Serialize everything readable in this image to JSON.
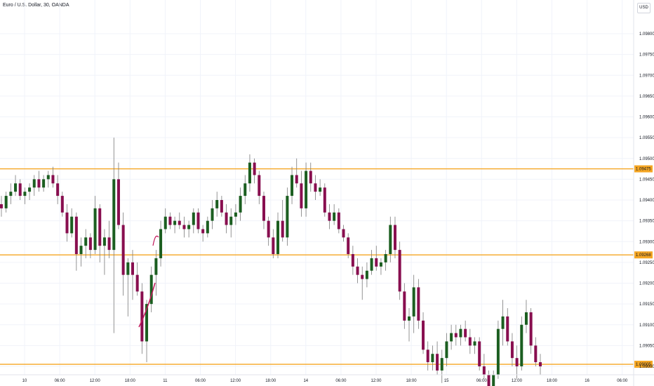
{
  "chart_data": {
    "type": "candlestick",
    "title": "Euro / U.S. Dollar, 30, OANDA",
    "currency_badge": "USD",
    "ylim": [
      1.09,
      1.0985
    ],
    "price_ticks": [
      "1.09800",
      "1.09750",
      "1.09700",
      "1.09650",
      "1.09600",
      "1.09550",
      "1.09500",
      "1.09450",
      "1.09400",
      "1.09350",
      "1.09300",
      "1.09250",
      "1.09200",
      "1.09150",
      "1.09100",
      "1.09050",
      "1.09000"
    ],
    "time_labels": [
      "10",
      "06:00",
      "12:00",
      "18:00",
      "11",
      "06:00",
      "12:00",
      "18:00",
      "14",
      "06:00",
      "12:00",
      "18:00",
      "15",
      "06:00",
      "12:00",
      "18:00",
      "16",
      "06:00"
    ],
    "horizontal_levels": [
      {
        "price": 1.09475,
        "label": "1.09475"
      },
      {
        "price": 1.09268,
        "label": "1.09268"
      },
      {
        "price": 1.09005,
        "label": "1.09005"
      }
    ],
    "colors": {
      "up": "#1b5e20",
      "down": "#880e4f",
      "level": "#f5a623",
      "grid": "#f0f3fa",
      "drawing": "#c2185b"
    },
    "candles": [
      [
        1.0939,
        1.0941,
        1.0936,
        1.0938
      ],
      [
        1.0938,
        1.0942,
        1.0937,
        1.0941
      ],
      [
        1.0941,
        1.0944,
        1.0939,
        1.0942
      ],
      [
        1.0942,
        1.0946,
        1.0941,
        1.0944
      ],
      [
        1.0944,
        1.0945,
        1.094,
        1.0941
      ],
      [
        1.0941,
        1.0943,
        1.0939,
        1.0942
      ],
      [
        1.0942,
        1.0944,
        1.094,
        1.0943
      ],
      [
        1.0943,
        1.0946,
        1.0941,
        1.0945
      ],
      [
        1.0945,
        1.0947,
        1.0942,
        1.0943
      ],
      [
        1.0943,
        1.0946,
        1.0942,
        1.0945
      ],
      [
        1.0945,
        1.0947,
        1.0943,
        1.0946
      ],
      [
        1.0946,
        1.0948,
        1.0943,
        1.0944
      ],
      [
        1.0944,
        1.0946,
        1.0939,
        1.0941
      ],
      [
        1.0941,
        1.0942,
        1.0936,
        1.0937
      ],
      [
        1.0937,
        1.0939,
        1.093,
        1.0932
      ],
      [
        1.0932,
        1.0938,
        1.0931,
        1.0936
      ],
      [
        1.0936,
        1.0937,
        1.0923,
        1.0927
      ],
      [
        1.0927,
        1.0931,
        1.0924,
        1.0929
      ],
      [
        1.0929,
        1.0933,
        1.0926,
        1.0931
      ],
      [
        1.0931,
        1.0932,
        1.0926,
        1.0928
      ],
      [
        1.0928,
        1.0941,
        1.0927,
        1.0938
      ],
      [
        1.0938,
        1.0939,
        1.0925,
        1.0929
      ],
      [
        1.0929,
        1.0933,
        1.0922,
        1.0931
      ],
      [
        1.0931,
        1.0935,
        1.0926,
        1.0928
      ],
      [
        1.0928,
        1.0955,
        1.0908,
        1.0945
      ],
      [
        1.0945,
        1.0949,
        1.0933,
        1.0934
      ],
      [
        1.0934,
        1.0937,
        1.0917,
        1.0922
      ],
      [
        1.0922,
        1.0926,
        1.0912,
        1.0925
      ],
      [
        1.0925,
        1.0928,
        1.0916,
        1.0922
      ],
      [
        1.0922,
        1.0925,
        1.0917,
        1.0918
      ],
      [
        1.0918,
        1.092,
        1.0903,
        1.0906
      ],
      [
        1.0906,
        1.0916,
        1.0901,
        1.0915
      ],
      [
        1.0915,
        1.0924,
        1.0913,
        1.0922
      ],
      [
        1.0922,
        1.0928,
        1.0917,
        1.0926
      ],
      [
        1.0926,
        1.0935,
        1.0924,
        1.0933
      ],
      [
        1.0933,
        1.0938,
        1.0932,
        1.0936
      ],
      [
        1.0936,
        1.0937,
        1.0933,
        1.0934
      ],
      [
        1.0934,
        1.0936,
        1.0932,
        1.0935
      ],
      [
        1.0935,
        1.0937,
        1.0933,
        1.0934
      ],
      [
        1.0934,
        1.0936,
        1.0931,
        1.0933
      ],
      [
        1.0933,
        1.0935,
        1.0931,
        1.0934
      ],
      [
        1.0934,
        1.0938,
        1.0932,
        1.0937
      ],
      [
        1.0937,
        1.0938,
        1.0932,
        1.0933
      ],
      [
        1.0933,
        1.0934,
        1.093,
        1.0932
      ],
      [
        1.0932,
        1.0936,
        1.0931,
        1.0935
      ],
      [
        1.0935,
        1.094,
        1.0933,
        1.0938
      ],
      [
        1.0938,
        1.0942,
        1.0936,
        1.094
      ],
      [
        1.094,
        1.0941,
        1.0936,
        1.0937
      ],
      [
        1.0937,
        1.0939,
        1.0932,
        1.0934
      ],
      [
        1.0934,
        1.0938,
        1.0931,
        1.0936
      ],
      [
        1.0936,
        1.0939,
        1.0934,
        1.0937
      ],
      [
        1.0937,
        1.0943,
        1.0935,
        1.0941
      ],
      [
        1.0941,
        1.0946,
        1.0939,
        1.0944
      ],
      [
        1.0944,
        1.0951,
        1.0942,
        1.0949
      ],
      [
        1.0949,
        1.095,
        1.0944,
        1.0946
      ],
      [
        1.0946,
        1.0947,
        1.0939,
        1.0941
      ],
      [
        1.0941,
        1.0942,
        1.0933,
        1.0935
      ],
      [
        1.0935,
        1.0936,
        1.0929,
        1.0931
      ],
      [
        1.0931,
        1.0933,
        1.0926,
        1.0927
      ],
      [
        1.0927,
        1.0937,
        1.0926,
        1.0935
      ],
      [
        1.0935,
        1.094,
        1.093,
        1.0931
      ],
      [
        1.0931,
        1.0943,
        1.0929,
        1.0941
      ],
      [
        1.0941,
        1.0948,
        1.0939,
        1.0946
      ],
      [
        1.0946,
        1.095,
        1.0943,
        1.0944
      ],
      [
        1.0944,
        1.0947,
        1.0936,
        1.0938
      ],
      [
        1.0938,
        1.0949,
        1.0936,
        1.0947
      ],
      [
        1.0947,
        1.0949,
        1.0942,
        1.0944
      ],
      [
        1.0944,
        1.0946,
        1.094,
        1.0942
      ],
      [
        1.0942,
        1.0945,
        1.0941,
        1.0943
      ],
      [
        1.0943,
        1.0944,
        1.0936,
        1.0937
      ],
      [
        1.0937,
        1.0939,
        1.0933,
        1.0935
      ],
      [
        1.0935,
        1.0939,
        1.0934,
        1.0937
      ],
      [
        1.0937,
        1.0938,
        1.0932,
        1.0933
      ],
      [
        1.0933,
        1.0934,
        1.093,
        1.0931
      ],
      [
        1.0931,
        1.0932,
        1.0926,
        1.0927
      ],
      [
        1.0927,
        1.0929,
        1.0922,
        1.0924
      ],
      [
        1.0924,
        1.0926,
        1.092,
        1.0922
      ],
      [
        1.0922,
        1.0924,
        1.0916,
        1.0921
      ],
      [
        1.0921,
        1.0925,
        1.0919,
        1.0923
      ],
      [
        1.0923,
        1.0928,
        1.0922,
        1.0926
      ],
      [
        1.0926,
        1.0929,
        1.0923,
        1.0924
      ],
      [
        1.0924,
        1.0926,
        1.0922,
        1.0925
      ],
      [
        1.0925,
        1.0928,
        1.0923,
        1.0927
      ],
      [
        1.0927,
        1.0936,
        1.0925,
        1.0934
      ],
      [
        1.0934,
        1.0936,
        1.0926,
        1.0928
      ],
      [
        1.0928,
        1.093,
        1.0916,
        1.0918
      ],
      [
        1.0918,
        1.092,
        1.0909,
        1.0911
      ],
      [
        1.0911,
        1.0914,
        1.0906,
        1.0912
      ],
      [
        1.0912,
        1.0922,
        1.0908,
        1.0919
      ],
      [
        1.0919,
        1.0921,
        1.0909,
        1.0911
      ],
      [
        1.0911,
        1.0913,
        1.0903,
        1.0904
      ],
      [
        1.0904,
        1.0906,
        1.0899,
        1.0901
      ],
      [
        1.0901,
        1.0905,
        1.0899,
        1.0903
      ],
      [
        1.0903,
        1.0906,
        1.0898,
        1.0899
      ],
      [
        1.0899,
        1.0904,
        1.0896,
        1.0902
      ],
      [
        1.0902,
        1.0908,
        1.09,
        1.0906
      ],
      [
        1.0906,
        1.091,
        1.0904,
        1.0908
      ],
      [
        1.0908,
        1.091,
        1.0905,
        1.0907
      ],
      [
        1.0907,
        1.091,
        1.0905,
        1.0909
      ],
      [
        1.0909,
        1.0911,
        1.0906,
        1.0907
      ],
      [
        1.0907,
        1.0909,
        1.0903,
        1.0905
      ],
      [
        1.0905,
        1.0907,
        1.0903,
        1.0906
      ],
      [
        1.0906,
        1.0907,
        1.0899,
        1.09
      ],
      [
        1.09,
        1.0903,
        1.0897,
        1.0898
      ],
      [
        1.0898,
        1.0899,
        1.0894,
        1.0895
      ],
      [
        1.0895,
        1.0899,
        1.0894,
        1.0898
      ],
      [
        1.0898,
        1.0911,
        1.0897,
        1.0909
      ],
      [
        1.0909,
        1.0916,
        1.0905,
        1.0912
      ],
      [
        1.0912,
        1.0914,
        1.0905,
        1.0906
      ],
      [
        1.0906,
        1.0908,
        1.09,
        1.0902
      ],
      [
        1.0902,
        1.0905,
        1.0897,
        1.09
      ],
      [
        1.09,
        1.0912,
        1.0899,
        1.091
      ],
      [
        1.091,
        1.0916,
        1.0908,
        1.0913
      ],
      [
        1.0913,
        1.0914,
        1.0903,
        1.0905
      ],
      [
        1.0905,
        1.0907,
        1.09,
        1.0901
      ],
      [
        1.0901,
        1.0903,
        1.0898,
        1.09
      ]
    ]
  }
}
